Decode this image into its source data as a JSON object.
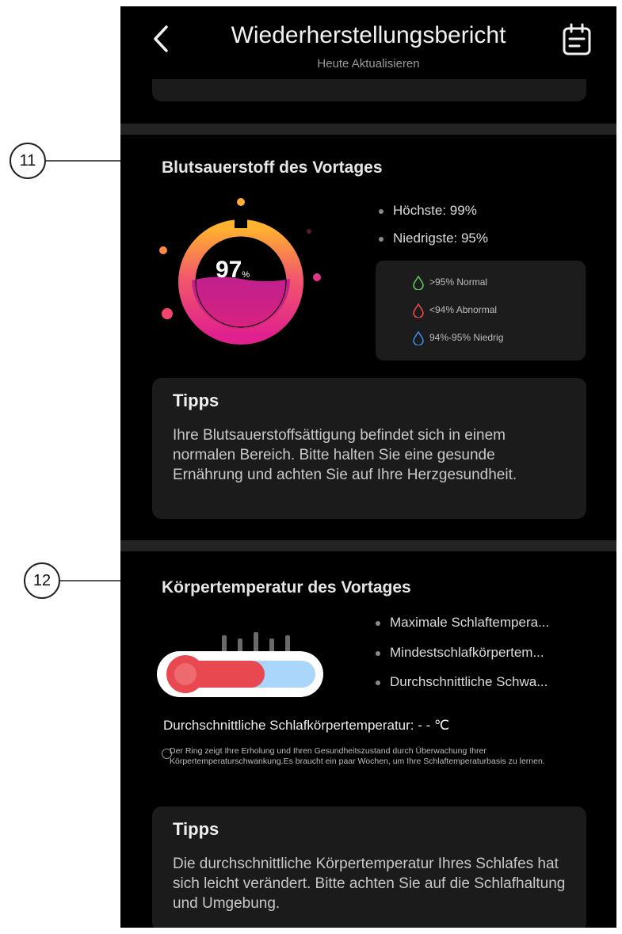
{
  "header": {
    "title": "Wiederherstellungsbericht",
    "subtitle": "Heute Aktualisieren",
    "back_icon": "chevron-left-icon",
    "calendar_icon": "calendar-icon"
  },
  "callouts": [
    "11",
    "12"
  ],
  "blood_oxygen": {
    "title": "Blutsauerstoff des Vortages",
    "value": "97",
    "unit": "%",
    "highest": "Höchste: 99%",
    "lowest": "Niedrigste: 95%",
    "legend": [
      {
        "label": ">95% Normal",
        "color": "#5fc35f"
      },
      {
        "label": "<94% Abnormal",
        "color": "#e8474d"
      },
      {
        "label": "94%-95% Niedrig",
        "color": "#3f86e8"
      }
    ],
    "tips_title": "Tipps",
    "tips_text": "Ihre Blutsauerstoffsättigung befindet sich in einem normalen Bereich. Bitte halten Sie eine gesunde Ernährung und achten Sie auf Ihre Herzgesundheit."
  },
  "body_temperature": {
    "title": "Körpertemperatur des Vortages",
    "stats": [
      "Maximale Schlaftempera...",
      "Mindestschlafkörpertem...",
      "Durchschnittliche Schwa..."
    ],
    "average_label": "Durchschnittliche Schlafkörpertemperatur: - - ℃",
    "note": "Der Ring zeigt Ihre Erholung und Ihren Gesundheitszustand durch Überwachung Ihrer Körpertemperaturschwankung.Es braucht ein paar Wochen, um Ihre Schlaftemperaturbasis zu lernen.",
    "tips_title": "Tipps",
    "tips_text": "Die durchschnittliche Körpertemperatur Ihres Schlafes hat sich leicht verändert. Bitte achten Sie auf die Schlafhaltung und Umgebung."
  },
  "colors": {
    "background": "#000000",
    "card": "#1b1b1b",
    "accent": "#e8389a"
  }
}
